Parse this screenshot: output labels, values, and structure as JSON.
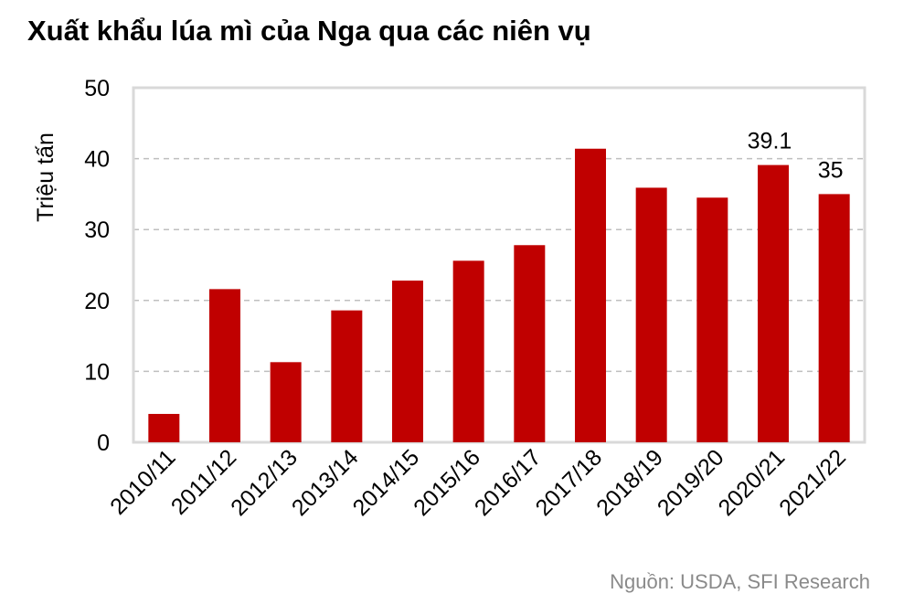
{
  "title": "Xuất khẩu lúa mì của Nga qua các niên vụ",
  "source": "Nguồn: USDA, SFI Research",
  "colors": {
    "bar": "#c00000",
    "grid": "#bfbfbf",
    "frame": "#d9d9d9"
  },
  "chart_data": {
    "type": "bar",
    "categories": [
      "2010/11",
      "2011/12",
      "2012/13",
      "2013/14",
      "2014/15",
      "2015/16",
      "2016/17",
      "2017/18",
      "2018/19",
      "2019/20",
      "2020/21",
      "2021/22"
    ],
    "values": [
      4.0,
      21.6,
      11.3,
      18.6,
      22.8,
      25.6,
      27.8,
      41.4,
      35.9,
      34.5,
      39.1,
      35
    ],
    "data_labels": [
      null,
      null,
      null,
      null,
      null,
      null,
      null,
      null,
      null,
      null,
      "39.1",
      "35"
    ],
    "ylabel": "Triệu tấn",
    "ylim": [
      0,
      50
    ],
    "yticks": [
      0,
      10,
      20,
      30,
      40,
      50
    ],
    "grid": true
  }
}
